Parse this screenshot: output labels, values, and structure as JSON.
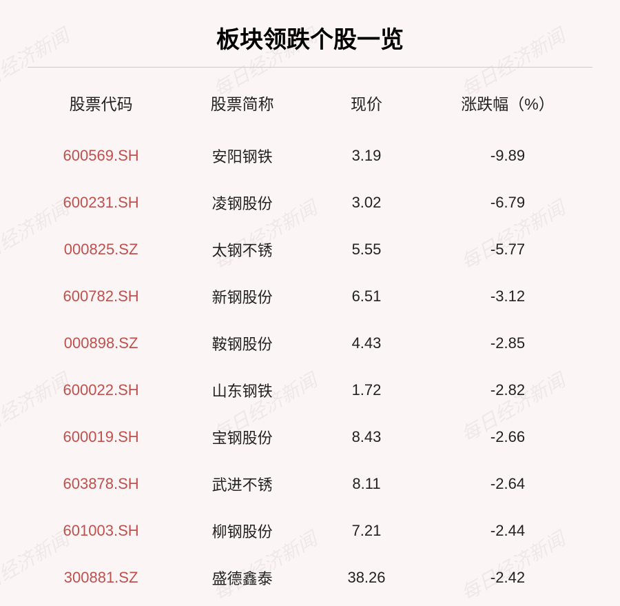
{
  "title": "板块领跌个股一览",
  "watermark_text": "每日经济新闻",
  "colors": {
    "background": "#fbf5f5",
    "title_text": "#000000",
    "header_text": "#222222",
    "cell_text": "#222222",
    "code_text": "#c0504d",
    "divider": "#cccccc",
    "watermark": "rgba(0,0,0,0.05)"
  },
  "typography": {
    "title_fontsize": 34,
    "header_fontsize": 23,
    "cell_fontsize": 22,
    "watermark_fontsize": 28
  },
  "table": {
    "columns": [
      "股票代码",
      "股票简称",
      "现价",
      "涨跌幅（%）"
    ],
    "column_widths_pct": [
      26,
      24,
      20,
      30
    ],
    "rows": [
      {
        "code": "600569.SH",
        "name": "安阳钢铁",
        "price": "3.19",
        "change": "-9.89"
      },
      {
        "code": "600231.SH",
        "name": "凌钢股份",
        "price": "3.02",
        "change": "-6.79"
      },
      {
        "code": "000825.SZ",
        "name": "太钢不锈",
        "price": "5.55",
        "change": "-5.77"
      },
      {
        "code": "600782.SH",
        "name": "新钢股份",
        "price": "6.51",
        "change": "-3.12"
      },
      {
        "code": "000898.SZ",
        "name": "鞍钢股份",
        "price": "4.43",
        "change": "-2.85"
      },
      {
        "code": "600022.SH",
        "name": "山东钢铁",
        "price": "1.72",
        "change": "-2.82"
      },
      {
        "code": "600019.SH",
        "name": "宝钢股份",
        "price": "8.43",
        "change": "-2.66"
      },
      {
        "code": "603878.SH",
        "name": "武进不锈",
        "price": "8.11",
        "change": "-2.64"
      },
      {
        "code": "601003.SH",
        "name": "柳钢股份",
        "price": "7.21",
        "change": "-2.44"
      },
      {
        "code": "300881.SZ",
        "name": "盛德鑫泰",
        "price": "38.26",
        "change": "-2.42"
      }
    ]
  }
}
